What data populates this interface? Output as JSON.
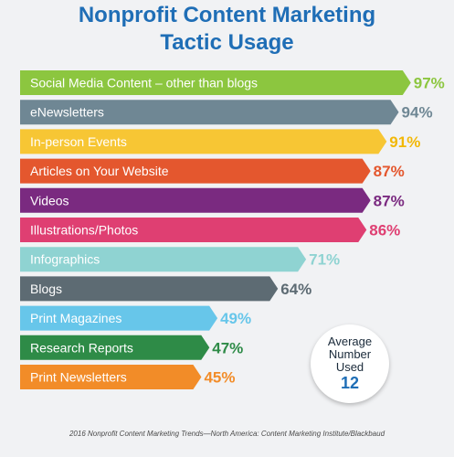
{
  "chart_data": {
    "type": "bar",
    "orientation": "horizontal",
    "title_lines": [
      "Nonprofit Content Marketing",
      "Tactic Usage"
    ],
    "categories": [
      "Social Media Content – other than blogs",
      "eNewsletters",
      "In-person Events",
      "Articles on Your Website",
      "Videos",
      "Illustrations/Photos",
      "Infographics",
      "Blogs",
      "Print Magazines",
      "Research Reports",
      "Print Newsletters"
    ],
    "values": [
      97,
      94,
      91,
      87,
      87,
      86,
      71,
      64,
      49,
      47,
      45
    ],
    "value_labels": [
      "97%",
      "94%",
      "91%",
      "87%",
      "87%",
      "86%",
      "71%",
      "64%",
      "49%",
      "47%",
      "45%"
    ],
    "colors": [
      "#8cc63f",
      "#6f8794",
      "#f7c634",
      "#e4572e",
      "#7a2a80",
      "#df3f72",
      "#8fd3d2",
      "#5d6b73",
      "#67c6ea",
      "#2e8b47",
      "#f28c28"
    ],
    "label_colors": [
      "#8cc63f",
      "#6f8794",
      "#f2b807",
      "#e4572e",
      "#7a2a80",
      "#df3f72",
      "#8fd3d2",
      "#5d6b73",
      "#67c6ea",
      "#2e8b47",
      "#f28c28"
    ],
    "xlim": [
      0,
      100
    ],
    "grid": false,
    "legend": "none"
  },
  "badge": {
    "line1": "Average",
    "line2": "Number",
    "line3": "Used",
    "value": "12"
  },
  "source": "2016 Nonprofit Content Marketing Trends—North America: Content Marketing Institute/Blackbaud"
}
